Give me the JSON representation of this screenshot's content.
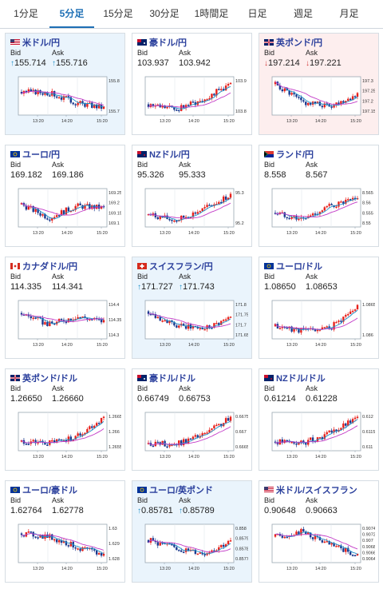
{
  "tabs": [
    {
      "label": "1分足",
      "active": false
    },
    {
      "label": "5分足",
      "active": true
    },
    {
      "label": "15分足",
      "active": false
    },
    {
      "label": "30分足",
      "active": false
    },
    {
      "label": "1時間足",
      "active": false
    },
    {
      "label": "日足",
      "active": false
    },
    {
      "label": "週足",
      "active": false
    },
    {
      "label": "月足",
      "active": false
    }
  ],
  "colors": {
    "candle_up": "#e8211b",
    "candle_down": "#1b3a8f",
    "ma_short": "#1e90c8",
    "ma_long": "#c33bc7",
    "up_bg": "#eaf4fc",
    "down_bg": "#fdeeee"
  },
  "labels": {
    "bid": "Bid",
    "ask": "Ask"
  },
  "cards": [
    {
      "name": "米ドル/円",
      "flag": "us-flag-icon",
      "bid": "155.714",
      "ask": "155.716",
      "dir": "up",
      "x_ticks": [
        "13:20",
        "14:20",
        "15:20"
      ],
      "y_ticks": [
        "155.8",
        "155.7"
      ],
      "trend": [
        0.62,
        0.6,
        0.3,
        0.15
      ]
    },
    {
      "name": "豪ドル/円",
      "flag": "au-flag-icon",
      "bid": "103.937",
      "ask": "103.942",
      "dir": "none",
      "x_ticks": [
        "13:20",
        "14:20",
        "15:20"
      ],
      "y_ticks": [
        "103.9",
        "103.8"
      ],
      "trend": [
        0.25,
        0.1,
        0.4,
        0.85
      ]
    },
    {
      "name": "英ポンド/円",
      "flag": "uk-flag-icon",
      "bid": "197.214",
      "ask": "197.221",
      "dir": "down",
      "x_ticks": [
        "13:20",
        "14:20",
        "15:20"
      ],
      "y_ticks": [
        "197.3",
        "197.25",
        "197.2",
        "197.15"
      ],
      "trend": [
        0.85,
        0.3,
        0.2,
        0.55
      ]
    },
    {
      "name": "ユーロ/円",
      "flag": "eu-flag-icon",
      "bid": "169.182",
      "ask": "169.186",
      "dir": "none",
      "x_ticks": [
        "13:20",
        "14:20",
        "15:20"
      ],
      "y_ticks": [
        "169.25",
        "169.2",
        "169.15",
        "169.1"
      ],
      "trend": [
        0.6,
        0.2,
        0.55,
        0.5
      ]
    },
    {
      "name": "NZドル/円",
      "flag": "nz-flag-icon",
      "bid": "95.326",
      "ask": "95.333",
      "dir": "none",
      "x_ticks": [
        "13:20",
        "14:20",
        "15:20"
      ],
      "y_ticks": [
        "95.3",
        "95.2"
      ],
      "trend": [
        0.3,
        0.12,
        0.45,
        0.88
      ]
    },
    {
      "name": "ランド/円",
      "flag": "za-flag-icon",
      "bid": "8.558",
      "ask": "8.567",
      "dir": "none",
      "x_ticks": [
        "13:20",
        "14:20",
        "15:20"
      ],
      "y_ticks": [
        "8.565",
        "8.56",
        "8.555",
        "8.55"
      ],
      "trend": [
        0.35,
        0.15,
        0.55,
        0.75
      ]
    },
    {
      "name": "カナダドル/円",
      "flag": "ca-flag-icon",
      "bid": "114.335",
      "ask": "114.341",
      "dir": "none",
      "x_ticks": [
        "13:20",
        "14:20",
        "15:20"
      ],
      "y_ticks": [
        "114.4",
        "114.35",
        "114.3"
      ],
      "trend": [
        0.7,
        0.35,
        0.6,
        0.45
      ]
    },
    {
      "name": "スイスフラン/円",
      "flag": "ch-flag-icon",
      "bid": "171.727",
      "ask": "171.743",
      "dir": "up",
      "x_ticks": [
        "13:20",
        "14:20",
        "15:20"
      ],
      "y_ticks": [
        "171.8",
        "171.75",
        "171.7",
        "171.65"
      ],
      "trend": [
        0.75,
        0.3,
        0.25,
        0.55
      ]
    },
    {
      "name": "ユーロ/ドル",
      "flag": "eu-us-flag-icon",
      "bid": "1.08650",
      "ask": "1.08653",
      "dir": "none",
      "x_ticks": [
        "13:20",
        "14:20",
        "15:20"
      ],
      "y_ticks": [
        "1.0865",
        "1.086"
      ],
      "trend": [
        0.3,
        0.18,
        0.25,
        0.9
      ]
    },
    {
      "name": "英ポンド/ドル",
      "flag": "uk-us-flag-icon",
      "bid": "1.26650",
      "ask": "1.26660",
      "dir": "none",
      "x_ticks": [
        "13:20",
        "14:20",
        "15:20"
      ],
      "y_ticks": [
        "1.2665",
        "1.266",
        "1.2655"
      ],
      "trend": [
        0.2,
        0.15,
        0.35,
        0.9
      ]
    },
    {
      "name": "豪ドル/ドル",
      "flag": "au-us-flag-icon",
      "bid": "0.66749",
      "ask": "0.66753",
      "dir": "none",
      "x_ticks": [
        "13:20",
        "14:20",
        "15:20"
      ],
      "y_ticks": [
        "0.6675",
        "0.667",
        "0.6665"
      ],
      "trend": [
        0.15,
        0.12,
        0.4,
        0.9
      ]
    },
    {
      "name": "NZドル/ドル",
      "flag": "nz-us-flag-icon",
      "bid": "0.61214",
      "ask": "0.61228",
      "dir": "none",
      "x_ticks": [
        "13:20",
        "14:20",
        "15:20"
      ],
      "y_ticks": [
        "0.612",
        "0.6115",
        "0.611"
      ],
      "trend": [
        0.2,
        0.15,
        0.45,
        0.9
      ]
    },
    {
      "name": "ユーロ/豪ドル",
      "flag": "eu-au-flag-icon",
      "bid": "1.62764",
      "ask": "1.62778",
      "dir": "none",
      "x_ticks": [
        "13:20",
        "14:20",
        "15:20"
      ],
      "y_ticks": [
        "1.63",
        "1.629",
        "1.628"
      ],
      "trend": [
        0.8,
        0.7,
        0.4,
        0.15
      ]
    },
    {
      "name": "ユーロ/英ポンド",
      "flag": "eu-uk-flag-icon",
      "bid": "0.85781",
      "ask": "0.85789",
      "dir": "up",
      "x_ticks": [
        "13:20",
        "14:20",
        "15:20"
      ],
      "y_ticks": [
        "0.858",
        "0.8579",
        "0.8578",
        "0.8577"
      ],
      "trend": [
        0.6,
        0.35,
        0.2,
        0.55
      ]
    },
    {
      "name": "米ドル/スイスフラン",
      "flag": "us-ch-flag-icon",
      "bid": "0.90648",
      "ask": "0.90663",
      "dir": "none",
      "x_ticks": [
        "13:20",
        "14:20",
        "15:20"
      ],
      "y_ticks": [
        "0.9074",
        "0.9072",
        "0.907",
        "0.9068",
        "0.9066",
        "0.9064"
      ],
      "trend": [
        0.7,
        0.85,
        0.45,
        0.15
      ]
    }
  ]
}
